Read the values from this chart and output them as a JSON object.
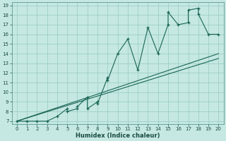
{
  "xlabel": "Humidex (Indice chaleur)",
  "background_color": "#c5e8e2",
  "grid_color": "#9ecec7",
  "line_color": "#1a6655",
  "xlim": [
    -0.5,
    20.5
  ],
  "ylim": [
    6.7,
    19.3
  ],
  "xticks": [
    0,
    1,
    2,
    3,
    4,
    5,
    6,
    7,
    8,
    9,
    10,
    11,
    12,
    13,
    14,
    15,
    16,
    17,
    18,
    19,
    20
  ],
  "yticks": [
    7,
    8,
    9,
    10,
    11,
    12,
    13,
    14,
    15,
    16,
    17,
    18,
    19
  ],
  "main_x": [
    0,
    1,
    2,
    3,
    4,
    5,
    5,
    6,
    6,
    7,
    7,
    8,
    8,
    9,
    9,
    10,
    11,
    12,
    13,
    14,
    15,
    15,
    16,
    17,
    17,
    18,
    18,
    19,
    20
  ],
  "main_y": [
    7,
    7,
    7,
    7,
    7.5,
    8.3,
    8.0,
    8.3,
    8.5,
    9.5,
    8.3,
    9.0,
    8.8,
    11.5,
    11.2,
    14.0,
    15.5,
    12.3,
    16.7,
    14.0,
    17.0,
    18.3,
    17.0,
    17.2,
    18.5,
    18.7,
    18.1,
    16.0,
    16.0
  ],
  "line2_x": [
    0,
    20
  ],
  "line2_y": [
    7,
    14.0
  ],
  "line3_x": [
    0,
    20
  ],
  "line3_y": [
    7,
    13.5
  ]
}
